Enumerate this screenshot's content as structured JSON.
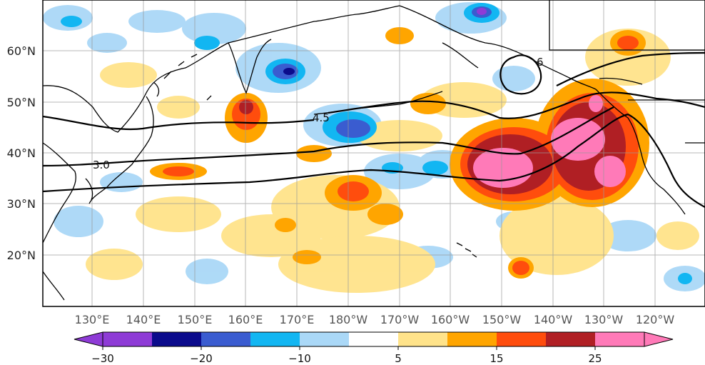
{
  "map": {
    "lon_labels": [
      "130°E",
      "140°E",
      "150°E",
      "160°E",
      "170°E",
      "180°W",
      "170°W",
      "160°W",
      "150°W",
      "140°W",
      "130°W",
      "120°W"
    ],
    "lat_labels": [
      "60°N",
      "50°N",
      "40°N",
      "30°N",
      "20°N"
    ],
    "contour_labels": [
      "3.0",
      "4.5",
      "6"
    ]
  },
  "colorbar": {
    "tick_labels": [
      "−30",
      "−20",
      "−10",
      "5",
      "15",
      "25"
    ],
    "colors": [
      "#8e3bd6",
      "#0b0b8c",
      "#3a5cd0",
      "#12b6f2",
      "#aad8f7",
      "#ffffff",
      "#ffe38a",
      "#ffa500",
      "#ff4d0d",
      "#b01f24",
      "#ff7ab8"
    ]
  }
}
